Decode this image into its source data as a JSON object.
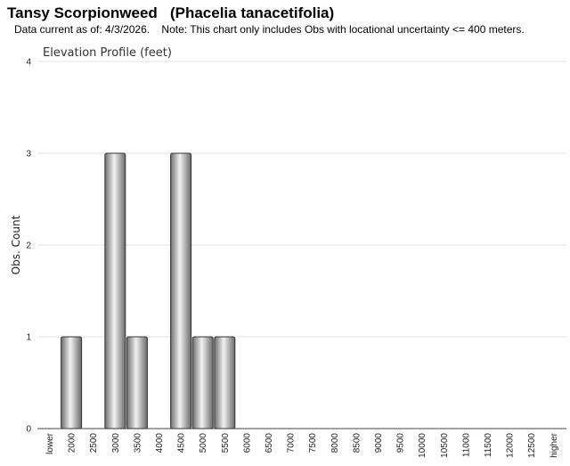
{
  "header": {
    "title": "Tansy Scorpionweed   (Phacelia tanacetifolia)",
    "subtitle": "Data current as of: 4/3/2026.    Note: This chart only includes Obs with locational uncertainty <= 400 meters."
  },
  "chart_data": {
    "type": "bar",
    "title": "Elevation Profile (feet)",
    "xlabel": "",
    "ylabel": "Obs. Count",
    "categories": [
      "lower",
      "2000",
      "2500",
      "3000",
      "3500",
      "4000",
      "4500",
      "5000",
      "5500",
      "6000",
      "6500",
      "7000",
      "7500",
      "8000",
      "8500",
      "9000",
      "9500",
      "10000",
      "10500",
      "11000",
      "11500",
      "12000",
      "12500",
      "higher"
    ],
    "values": [
      0,
      1,
      0,
      3,
      1,
      0,
      3,
      1,
      1,
      0,
      0,
      0,
      0,
      0,
      0,
      0,
      0,
      0,
      0,
      0,
      0,
      0,
      0,
      0
    ],
    "ylim": [
      0,
      4
    ],
    "yticks": [
      0,
      1,
      2,
      3,
      4
    ],
    "grid": true,
    "legend": "none",
    "bar_color": "#9a9a9a"
  }
}
